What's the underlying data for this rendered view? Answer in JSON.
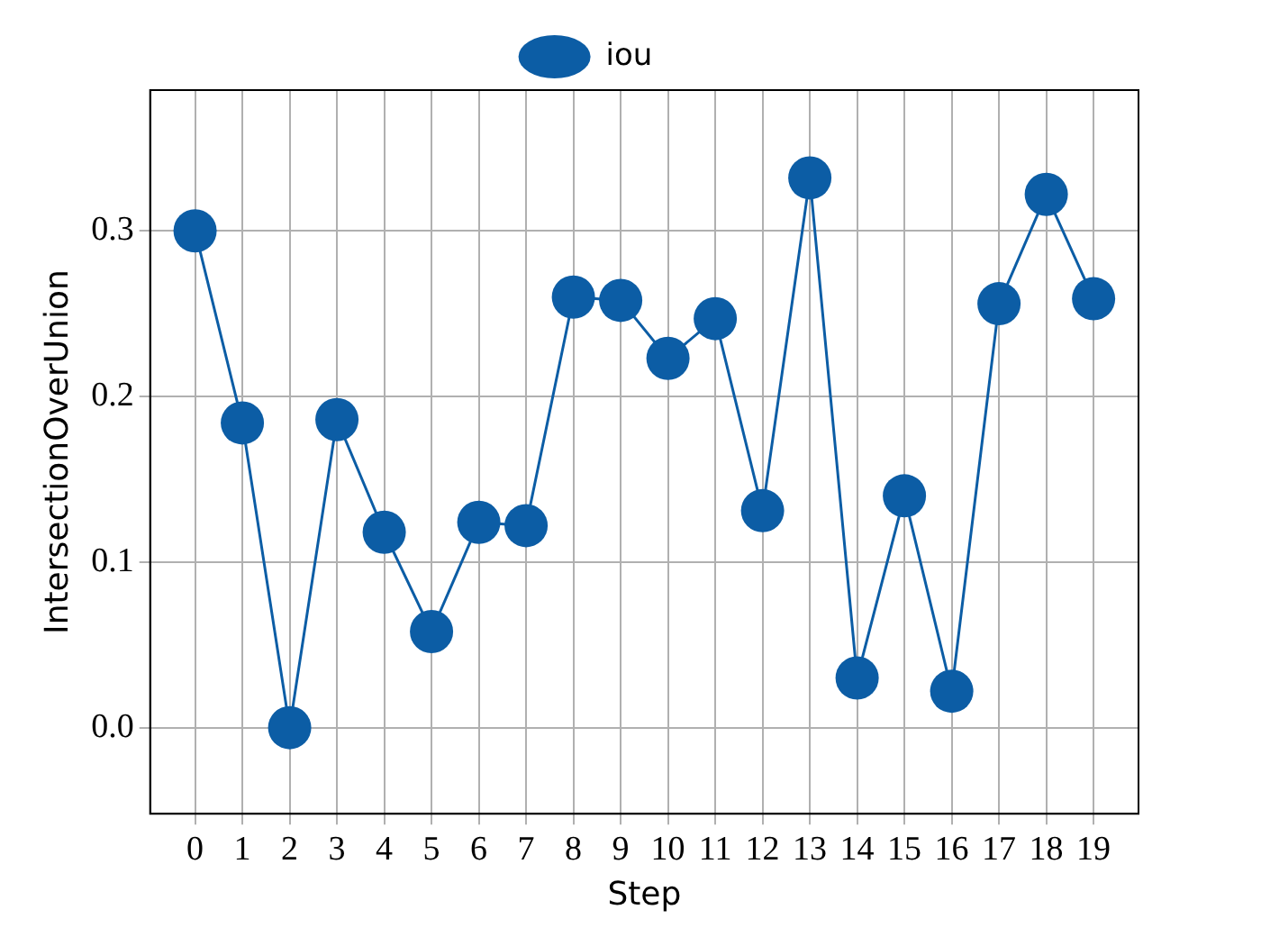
{
  "chart_data": {
    "type": "line",
    "xlabel": "Step",
    "ylabel": "IntersectionOverUnion",
    "x": [
      0,
      1,
      2,
      3,
      4,
      5,
      6,
      7,
      8,
      9,
      10,
      11,
      12,
      13,
      14,
      15,
      16,
      17,
      18,
      19
    ],
    "series": [
      {
        "name": "iou",
        "color": "#0c5da5",
        "values": [
          0.3,
          0.184,
          0.0,
          0.186,
          0.118,
          0.058,
          0.124,
          0.122,
          0.26,
          0.258,
          0.223,
          0.247,
          0.131,
          0.332,
          0.03,
          0.14,
          0.022,
          0.256,
          0.322,
          0.259
        ]
      }
    ],
    "xlim": [
      -0.95,
      19.95
    ],
    "xticks": [
      0,
      1,
      2,
      3,
      4,
      5,
      6,
      7,
      8,
      9,
      10,
      11,
      12,
      13,
      14,
      15,
      16,
      17,
      18,
      19
    ],
    "ylim": [
      -0.052,
      0.385
    ],
    "yticks": [
      {
        "value": 0,
        "label": "0.0"
      },
      {
        "value": 0.1,
        "label": "0.1"
      },
      {
        "value": 0.2,
        "label": "0.2"
      },
      {
        "value": 0.3,
        "label": "0.3"
      }
    ],
    "grid": true,
    "legend": "top",
    "marker": "circle",
    "line_style": "solid"
  }
}
